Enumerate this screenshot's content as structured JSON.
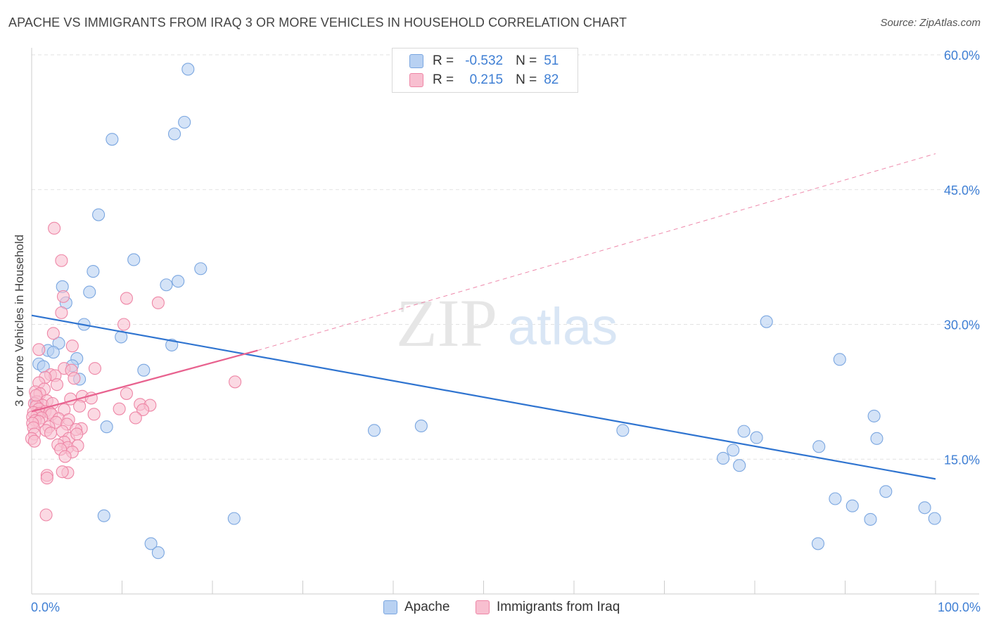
{
  "title": "APACHE VS IMMIGRANTS FROM IRAQ 3 OR MORE VEHICLES IN HOUSEHOLD CORRELATION CHART",
  "source": "Source: ZipAtlas.com",
  "watermark": {
    "zip": "ZIP",
    "atlas": "atlas"
  },
  "legend": {
    "apache": {
      "r_label": "R =",
      "r_value": "-0.532",
      "n_label": "N =",
      "n_value": "51"
    },
    "iraq": {
      "r_label": "R =",
      "r_value": "0.215",
      "n_label": "N =",
      "n_value": "82"
    }
  },
  "bottom_legend": {
    "apache": "Apache",
    "iraq": "Immigrants from Iraq"
  },
  "colors": {
    "apache_fill": "#b8d1f2",
    "apache_stroke": "#7aa6e0",
    "apache_line": "#2f74d0",
    "iraq_fill": "#f8bfd0",
    "iraq_stroke": "#ee86a6",
    "iraq_line": "#e8628f",
    "grid": "#e2e2e2",
    "tick_label": "#3f7fd4"
  },
  "chart_data": {
    "type": "scatter",
    "title": "APACHE VS IMMIGRANTS FROM IRAQ 3 OR MORE VEHICLES IN HOUSEHOLD CORRELATION CHART",
    "xlabel": "",
    "ylabel": "3 or more Vehicles in Household",
    "xlim": [
      0,
      100
    ],
    "ylim": [
      0,
      60
    ],
    "x_tick_labels": [
      "0.0%",
      "100.0%"
    ],
    "y_ticks": [
      15,
      30,
      45,
      60
    ],
    "y_tick_labels": [
      "15.0%",
      "30.0%",
      "45.0%",
      "60.0%"
    ],
    "grid": true,
    "series": [
      {
        "name": "Apache",
        "r": -0.532,
        "n": 51,
        "trend": {
          "x": [
            0,
            100
          ],
          "y": [
            31.0,
            12.8
          ],
          "style": "solid"
        },
        "points": [
          [
            17.3,
            58.4
          ],
          [
            16.9,
            52.5
          ],
          [
            15.8,
            51.2
          ],
          [
            8.9,
            50.6
          ],
          [
            7.4,
            42.2
          ],
          [
            11.3,
            37.2
          ],
          [
            18.7,
            36.2
          ],
          [
            6.8,
            35.9
          ],
          [
            16.2,
            34.8
          ],
          [
            14.9,
            34.4
          ],
          [
            6.4,
            33.6
          ],
          [
            3.4,
            34.2
          ],
          [
            3.8,
            32.4
          ],
          [
            5.8,
            30.0
          ],
          [
            9.9,
            28.6
          ],
          [
            3.0,
            27.9
          ],
          [
            15.5,
            27.7
          ],
          [
            1.8,
            27.1
          ],
          [
            2.4,
            26.9
          ],
          [
            5.0,
            26.2
          ],
          [
            0.8,
            25.6
          ],
          [
            1.3,
            25.3
          ],
          [
            4.5,
            25.4
          ],
          [
            12.4,
            24.9
          ],
          [
            5.3,
            23.9
          ],
          [
            0.5,
            21.4
          ],
          [
            8.3,
            18.6
          ],
          [
            37.9,
            18.2
          ],
          [
            43.1,
            18.7
          ],
          [
            65.4,
            18.2
          ],
          [
            81.3,
            30.3
          ],
          [
            89.4,
            26.1
          ],
          [
            93.2,
            19.8
          ],
          [
            93.5,
            17.3
          ],
          [
            78.8,
            18.1
          ],
          [
            80.2,
            17.4
          ],
          [
            77.6,
            16.0
          ],
          [
            87.1,
            16.4
          ],
          [
            76.5,
            15.1
          ],
          [
            78.3,
            14.3
          ],
          [
            94.5,
            11.4
          ],
          [
            88.9,
            10.6
          ],
          [
            90.8,
            9.8
          ],
          [
            98.8,
            9.6
          ],
          [
            99.9,
            8.4
          ],
          [
            92.8,
            8.3
          ],
          [
            8.0,
            8.7
          ],
          [
            22.4,
            8.4
          ],
          [
            13.2,
            5.6
          ],
          [
            14.0,
            4.6
          ],
          [
            87.0,
            5.6
          ]
        ]
      },
      {
        "name": "Immigrants from Iraq",
        "r": 0.215,
        "n": 82,
        "trend": {
          "x": [
            0,
            25
          ],
          "y": [
            20.3,
            27.1
          ],
          "style": "solid",
          "extended": {
            "x": [
              25,
              100
            ],
            "y": [
              27.1,
              49.0
            ],
            "style": "dashed"
          }
        },
        "points": [
          [
            2.5,
            40.7
          ],
          [
            3.3,
            37.1
          ],
          [
            10.5,
            32.9
          ],
          [
            14.0,
            32.4
          ],
          [
            3.5,
            33.1
          ],
          [
            3.3,
            31.3
          ],
          [
            10.2,
            30.0
          ],
          [
            2.4,
            29.0
          ],
          [
            4.5,
            27.6
          ],
          [
            0.8,
            27.2
          ],
          [
            7.0,
            25.1
          ],
          [
            3.6,
            25.1
          ],
          [
            4.4,
            24.9
          ],
          [
            2.1,
            24.4
          ],
          [
            2.6,
            24.3
          ],
          [
            1.5,
            24.1
          ],
          [
            4.7,
            24.0
          ],
          [
            22.5,
            23.6
          ],
          [
            0.8,
            23.5
          ],
          [
            2.8,
            23.3
          ],
          [
            1.4,
            22.8
          ],
          [
            0.4,
            22.5
          ],
          [
            0.9,
            22.3
          ],
          [
            10.5,
            22.3
          ],
          [
            5.6,
            22.0
          ],
          [
            6.6,
            21.8
          ],
          [
            4.3,
            21.7
          ],
          [
            1.7,
            21.5
          ],
          [
            0.6,
            21.4
          ],
          [
            0.3,
            21.2
          ],
          [
            1.2,
            21.0
          ],
          [
            2.3,
            21.2
          ],
          [
            12.0,
            21.1
          ],
          [
            13.1,
            21.0
          ],
          [
            0.5,
            20.9
          ],
          [
            0.8,
            20.6
          ],
          [
            3.6,
            20.5
          ],
          [
            12.3,
            20.5
          ],
          [
            1.5,
            20.3
          ],
          [
            0.2,
            20.2
          ],
          [
            0.9,
            20.1
          ],
          [
            2.0,
            20.2
          ],
          [
            9.7,
            20.6
          ],
          [
            2.2,
            20.0
          ],
          [
            0.6,
            19.9
          ],
          [
            0.1,
            19.7
          ],
          [
            1.1,
            19.6
          ],
          [
            3.0,
            19.5
          ],
          [
            4.1,
            19.4
          ],
          [
            11.5,
            19.6
          ],
          [
            0.4,
            19.3
          ],
          [
            0.8,
            19.2
          ],
          [
            2.7,
            19.1
          ],
          [
            0.1,
            19.0
          ],
          [
            3.9,
            18.9
          ],
          [
            1.9,
            18.6
          ],
          [
            0.2,
            18.5
          ],
          [
            5.5,
            18.4
          ],
          [
            1.6,
            18.2
          ],
          [
            4.9,
            18.3
          ],
          [
            3.4,
            18.1
          ],
          [
            0.3,
            17.8
          ],
          [
            2.1,
            17.9
          ],
          [
            0.0,
            17.3
          ],
          [
            4.1,
            17.3
          ],
          [
            5.0,
            17.8
          ],
          [
            3.6,
            16.9
          ],
          [
            2.9,
            16.6
          ],
          [
            4.0,
            16.3
          ],
          [
            5.1,
            16.5
          ],
          [
            3.2,
            16.1
          ],
          [
            4.5,
            15.8
          ],
          [
            3.7,
            15.3
          ],
          [
            4.0,
            13.5
          ],
          [
            3.4,
            13.6
          ],
          [
            1.7,
            13.2
          ],
          [
            1.7,
            12.9
          ],
          [
            1.6,
            8.8
          ],
          [
            5.3,
            20.9
          ],
          [
            6.9,
            20.0
          ],
          [
            0.5,
            22.1
          ],
          [
            0.3,
            17.0
          ]
        ]
      }
    ]
  }
}
